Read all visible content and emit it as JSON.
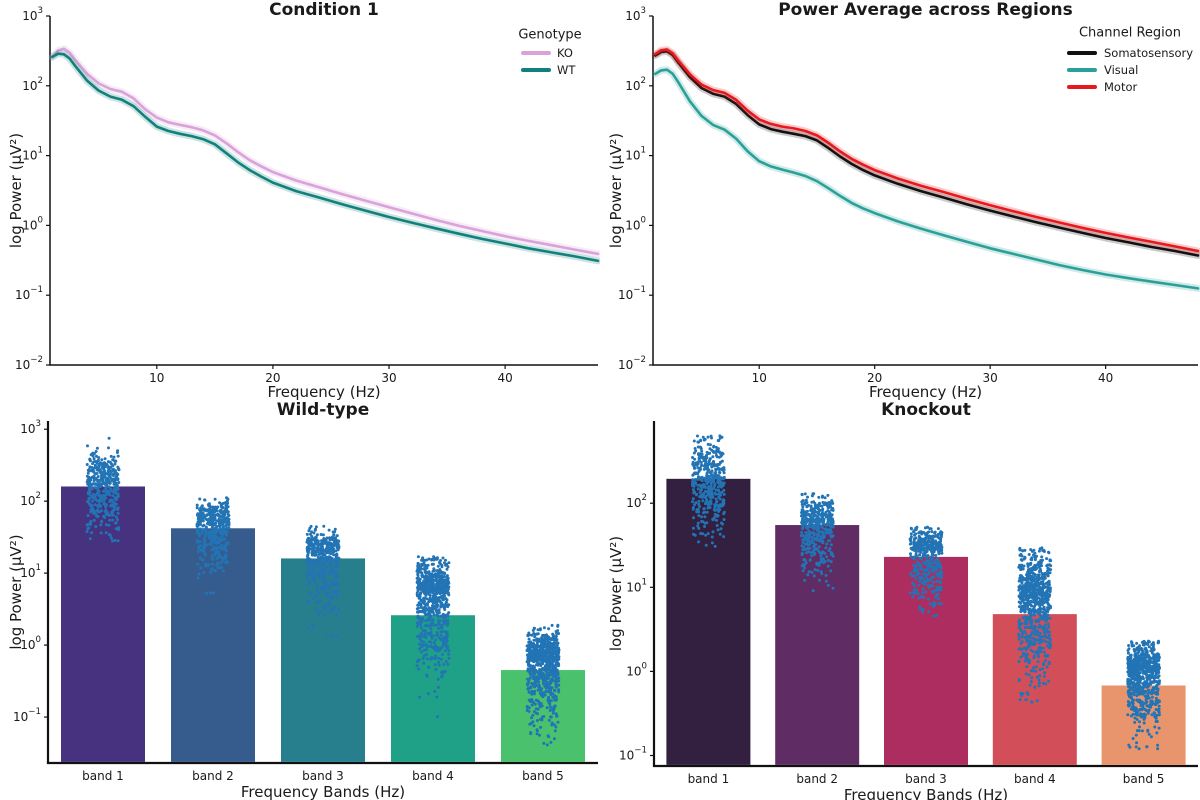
{
  "figure": {
    "background": "#ffffff",
    "text_color": "#1a1a1a",
    "spine_color": "#111111",
    "scatter_color": "#2274b5"
  },
  "chart_data": [
    {
      "id": "condition-1",
      "type": "line",
      "title": "Condition 1",
      "xlabel": "Frequency (Hz)",
      "ylabel": "log Power (μV²)",
      "yscale": "log",
      "xlim": [
        0.8,
        48
      ],
      "ylim": [
        0.01,
        1000
      ],
      "x_ticks": [
        10,
        20,
        30,
        40
      ],
      "y_ticks": [
        1000,
        100,
        10,
        1,
        0.1,
        0.01
      ],
      "grid": false,
      "legend": {
        "title": "Genotype",
        "position": "upper-right",
        "entries": [
          {
            "label": "KO",
            "color": "#d9a3da"
          },
          {
            "label": "WT",
            "color": "#12807b"
          }
        ]
      },
      "x": [
        1,
        1.5,
        2,
        2.5,
        3,
        4,
        5,
        6,
        7,
        8,
        9,
        10,
        11,
        12,
        13,
        14,
        15,
        16,
        17,
        18,
        19,
        20,
        22,
        24,
        26,
        28,
        30,
        32,
        34,
        36,
        38,
        40,
        42,
        44,
        46,
        48
      ],
      "series": [
        {
          "name": "KO",
          "color": "#d9a3da",
          "values": [
            255,
            320,
            340,
            298,
            232,
            148,
            108,
            90,
            82,
            66,
            46,
            35,
            30,
            27.5,
            25.5,
            23,
            19.5,
            15,
            11.2,
            8.6,
            7.0,
            5.8,
            4.4,
            3.5,
            2.8,
            2.25,
            1.82,
            1.48,
            1.2,
            0.99,
            0.83,
            0.7,
            0.6,
            0.52,
            0.45,
            0.39
          ]
        },
        {
          "name": "WT",
          "color": "#12807b",
          "values": [
            260,
            288,
            283,
            245,
            190,
            118,
            85,
            70,
            63,
            51,
            36,
            26,
            22.5,
            20.5,
            19,
            17.2,
            14.5,
            10.8,
            8.0,
            6.2,
            5.0,
            4.1,
            3.1,
            2.5,
            2.0,
            1.62,
            1.32,
            1.09,
            0.91,
            0.76,
            0.64,
            0.55,
            0.47,
            0.41,
            0.36,
            0.31
          ]
        }
      ]
    },
    {
      "id": "power-average-across-regions",
      "type": "line",
      "title": "Power Average across Regions",
      "xlabel": "Frequency (Hz)",
      "ylabel": "log Power (μV²)",
      "yscale": "log",
      "xlim": [
        0.8,
        48
      ],
      "ylim": [
        0.01,
        1000
      ],
      "x_ticks": [
        10,
        20,
        30,
        40
      ],
      "y_ticks": [
        1000,
        100,
        10,
        1,
        0.1,
        0.01
      ],
      "grid": false,
      "legend": {
        "title": "Channel Region",
        "position": "upper-right",
        "entries": [
          {
            "label": "Somatosensory",
            "color": "#111111"
          },
          {
            "label": "Visual",
            "color": "#2ba098"
          },
          {
            "label": "Motor",
            "color": "#e8191c"
          }
        ]
      },
      "x": [
        1,
        1.5,
        2,
        2.5,
        3,
        4,
        5,
        6,
        7,
        8,
        9,
        10,
        11,
        12,
        13,
        14,
        15,
        16,
        17,
        18,
        19,
        20,
        22,
        24,
        26,
        28,
        30,
        32,
        34,
        36,
        38,
        40,
        42,
        44,
        46,
        48
      ],
      "series": [
        {
          "name": "Somatosensory",
          "color": "#111111",
          "values": [
            272,
            305,
            312,
            277,
            214,
            133,
            93,
            77,
            70,
            55,
            38,
            28,
            24,
            22,
            20.5,
            19,
            16.5,
            12.8,
            9.7,
            7.6,
            6.2,
            5.2,
            3.95,
            3.1,
            2.5,
            2.0,
            1.63,
            1.34,
            1.11,
            0.93,
            0.78,
            0.66,
            0.57,
            0.49,
            0.43,
            0.37
          ]
        },
        {
          "name": "Visual",
          "color": "#2ba098",
          "values": [
            148,
            166,
            170,
            149,
            112,
            60,
            37,
            27.5,
            23.5,
            17.5,
            11.5,
            8.3,
            7.0,
            6.3,
            5.7,
            5.1,
            4.3,
            3.4,
            2.65,
            2.1,
            1.75,
            1.5,
            1.14,
            0.9,
            0.72,
            0.58,
            0.47,
            0.39,
            0.325,
            0.27,
            0.23,
            0.198,
            0.175,
            0.156,
            0.14,
            0.125
          ]
        },
        {
          "name": "Motor",
          "color": "#e8191c",
          "values": [
            285,
            322,
            330,
            292,
            228,
            146,
            104,
            87,
            79,
            63,
            44,
            33,
            28.5,
            26,
            24.5,
            22.5,
            19.5,
            15.2,
            11.5,
            9.0,
            7.4,
            6.2,
            4.7,
            3.7,
            3.0,
            2.4,
            1.95,
            1.6,
            1.32,
            1.1,
            0.92,
            0.78,
            0.67,
            0.58,
            0.5,
            0.43
          ]
        }
      ]
    },
    {
      "id": "wild-type",
      "type": "bar-strip",
      "title": "Wild-type",
      "xlabel": "Frequency Bands (Hz)",
      "ylabel": "log Power (μV²)",
      "yscale": "log",
      "ylim": [
        0.023,
        1300
      ],
      "y_ticks": [
        1000,
        100,
        10,
        1,
        0.1
      ],
      "grid": false,
      "categories": [
        "band 1",
        "band 2",
        "band 3",
        "band 4",
        "band 5"
      ],
      "bar_values": [
        160,
        42,
        16,
        2.6,
        0.45
      ],
      "bar_colors": [
        "#46327e",
        "#365c8d",
        "#277f8e",
        "#1fa187",
        "#4ac16d"
      ],
      "strip": {
        "color": "#2274b5",
        "n": [
          430,
          430,
          430,
          750,
          750
        ],
        "log10_center": [
          2.22,
          1.66,
          1.28,
          0.72,
          -0.22
        ],
        "log10_spread_up": [
          0.22,
          0.16,
          0.15,
          0.22,
          0.2
        ],
        "log10_spread_down": [
          0.33,
          0.32,
          0.42,
          0.55,
          0.42
        ],
        "value_range": [
          [
            28,
            850
          ],
          [
            5,
            115
          ],
          [
            1.3,
            45
          ],
          [
            0.1,
            17
          ],
          [
            0.04,
            1.9
          ]
        ]
      }
    },
    {
      "id": "knockout",
      "type": "bar-strip",
      "title": "Knockout",
      "xlabel": "Frequency Bands (Hz)",
      "ylabel": "log Power (μV²)",
      "yscale": "log",
      "ylim": [
        0.075,
        950
      ],
      "y_ticks": [
        100,
        10,
        1,
        0.1
      ],
      "grid": false,
      "categories": [
        "band 1",
        "band 2",
        "band 3",
        "band 4",
        "band 5"
      ],
      "bar_values": [
        195,
        55,
        23,
        4.8,
        0.68
      ],
      "bar_colors": [
        "#332040",
        "#5f2c63",
        "#ad2d61",
        "#d24f5a",
        "#e8946d"
      ],
      "strip": {
        "color": "#2274b5",
        "n": [
          430,
          430,
          430,
          750,
          750
        ],
        "log10_center": [
          2.28,
          1.76,
          1.43,
          0.88,
          -0.02
        ],
        "log10_spread_up": [
          0.22,
          0.16,
          0.13,
          0.25,
          0.16
        ],
        "log10_spread_down": [
          0.3,
          0.3,
          0.33,
          0.5,
          0.33
        ],
        "value_range": [
          [
            30,
            640
          ],
          [
            9,
            130
          ],
          [
            4.5,
            52
          ],
          [
            0.42,
            30
          ],
          [
            0.12,
            2.3
          ]
        ]
      }
    }
  ]
}
